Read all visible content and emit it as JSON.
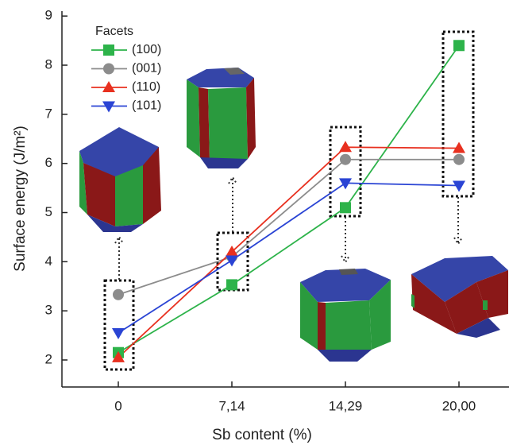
{
  "chart_data": {
    "type": "line",
    "x_label": "Sb content (%)",
    "y_label": "Surface energy (J/m²)",
    "legend_title": "Facets",
    "categories": [
      "0",
      "7,14",
      "14,29",
      "20,00"
    ],
    "series": [
      {
        "name": "(100)",
        "color": "#2db34a",
        "marker": "square",
        "values": [
          2.15,
          3.53,
          5.1,
          8.4
        ]
      },
      {
        "name": "(001)",
        "color": "#8c8c8c",
        "marker": "circle",
        "values": [
          3.33,
          4.1,
          6.08,
          6.08
        ]
      },
      {
        "name": "(110)",
        "color": "#e8301f",
        "marker": "triangle-up",
        "values": [
          2.05,
          4.2,
          6.33,
          6.31
        ]
      },
      {
        "name": "(101)",
        "color": "#2a44d4",
        "marker": "triangle-down",
        "values": [
          2.55,
          4.03,
          5.6,
          5.55
        ]
      }
    ],
    "ylim": [
      1.45,
      9.1
    ],
    "yticks": [
      2,
      3,
      4,
      5,
      6,
      7,
      8,
      9
    ]
  }
}
